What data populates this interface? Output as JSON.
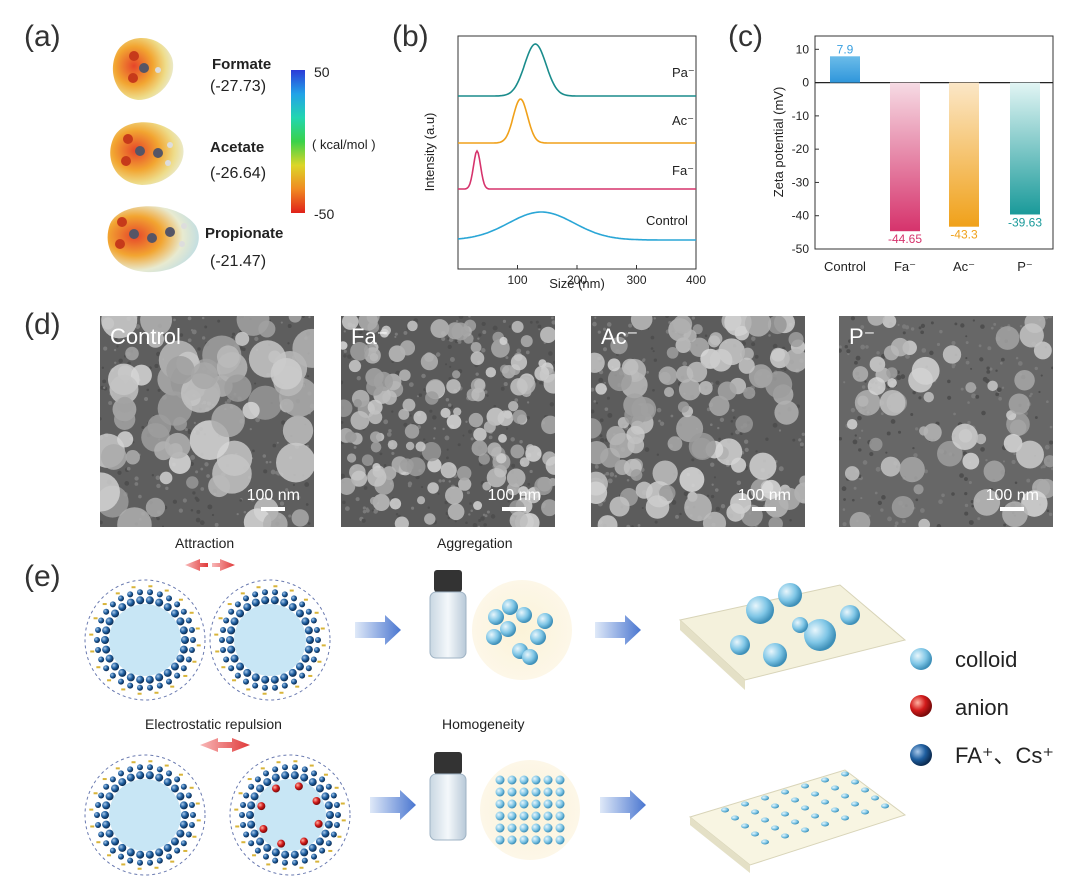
{
  "panels": {
    "a": "(a)",
    "b": "(b)",
    "c": "(c)",
    "d": "(d)",
    "e": "(e)"
  },
  "esp": {
    "molecules": [
      {
        "name": "Formate",
        "energy": "(-27.73)"
      },
      {
        "name": "Acetate",
        "energy": "(-26.64)"
      },
      {
        "name": "Propionate",
        "energy": "(-21.47)"
      }
    ],
    "colorbar": {
      "max": "50",
      "min": "-50",
      "unit": "( kcal/mol )"
    }
  },
  "chart_data": [
    {
      "type": "line",
      "title": "",
      "xlabel": "Size (nm)",
      "ylabel": "Intensity (a.u)",
      "xlim": [
        0,
        400
      ],
      "xticks": [
        100,
        200,
        300,
        400
      ],
      "series": [
        {
          "name": "Pa⁻",
          "peak": 130,
          "color": "#1a8c8c"
        },
        {
          "name": "Ac⁻",
          "peak": 105,
          "color": "#f0a11a"
        },
        {
          "name": "Fa⁻",
          "peak": 32,
          "color": "#d6336c"
        },
        {
          "name": "Control",
          "peak": 140,
          "color": "#2aa6d6"
        }
      ]
    },
    {
      "type": "bar",
      "title": "",
      "xlabel": "",
      "ylabel": "Zeta potential (mV)",
      "ylim": [
        -50,
        14
      ],
      "yticks": [
        10,
        0,
        -10,
        -20,
        -30,
        -40,
        -50
      ],
      "categories": [
        "Control",
        "Fa⁻",
        "Ac⁻",
        "P⁻"
      ],
      "values": [
        7.9,
        -44.65,
        -43.3,
        -39.63
      ],
      "value_labels": [
        "7.9",
        "-44.65",
        "-43.3",
        "-39.63"
      ],
      "colors": [
        "#3aa0e0",
        "#d6336c",
        "#f0a11a",
        "#1a9a9a"
      ]
    }
  ],
  "sem": {
    "images": [
      {
        "label": "Control",
        "scale": "100 nm"
      },
      {
        "label": "Fa⁻",
        "scale": "100 nm"
      },
      {
        "label": "Ac⁻",
        "scale": "100 nm"
      },
      {
        "label": "P⁻",
        "scale": "100 nm"
      }
    ]
  },
  "scheme": {
    "attraction": "Attraction",
    "aggregation": "Aggregation",
    "repulsion": "Electrostatic repulsion",
    "homogeneity": "Homogeneity",
    "legend": [
      {
        "label": "colloid",
        "color": "#7fc6e6"
      },
      {
        "label": "anion",
        "color": "#d21a1a"
      },
      {
        "label": "FA⁺、Cs⁺",
        "color": "#1f5fa0"
      }
    ]
  }
}
